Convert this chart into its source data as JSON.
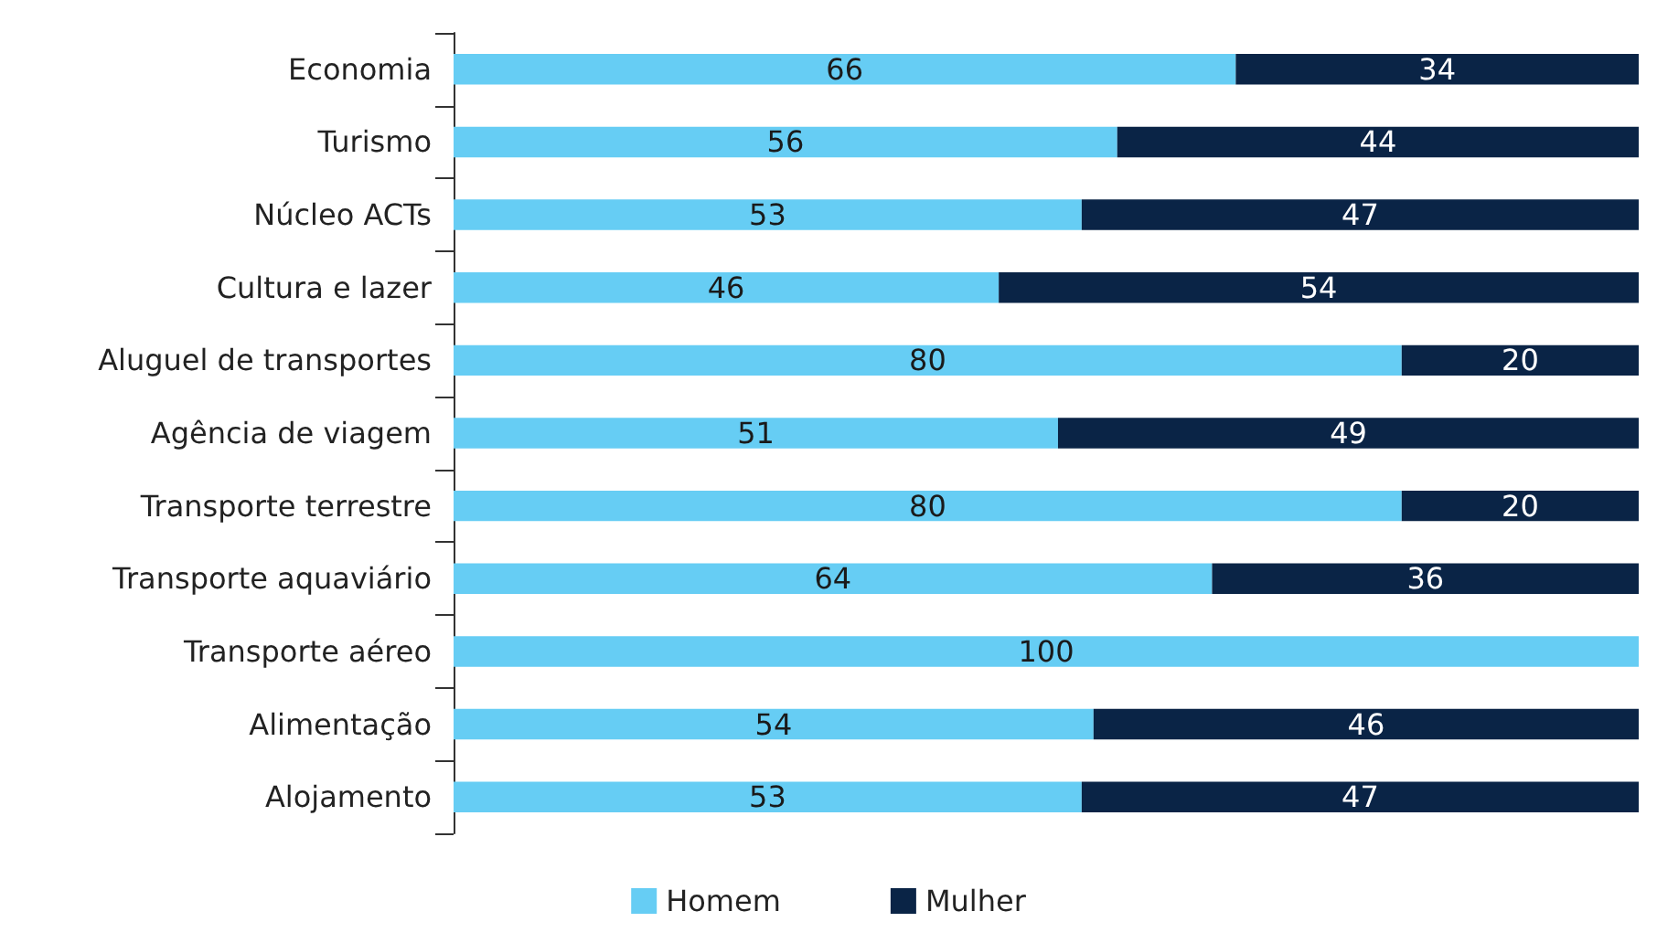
{
  "chart_data": {
    "type": "bar",
    "orientation": "horizontal",
    "stacked": true,
    "data_labels": true,
    "legend": "bottom",
    "categories": [
      "Economia",
      "Turismo",
      "Núcleo ACTs",
      "Cultura e lazer",
      "Aluguel de transportes",
      "Agência de viagem",
      "Transporte terrestre",
      "Transporte aquaviário",
      "Transporte aéreo",
      "Alimentação",
      "Alojamento"
    ],
    "series": [
      {
        "name": "Homem",
        "color": "#66cdf4",
        "values": [
          66,
          56,
          53,
          46,
          80,
          51,
          80,
          64,
          100,
          54,
          53
        ]
      },
      {
        "name": "Mulher",
        "color": "#0a2446",
        "values": [
          34,
          44,
          47,
          54,
          20,
          49,
          20,
          36,
          null,
          46,
          47
        ]
      }
    ]
  }
}
